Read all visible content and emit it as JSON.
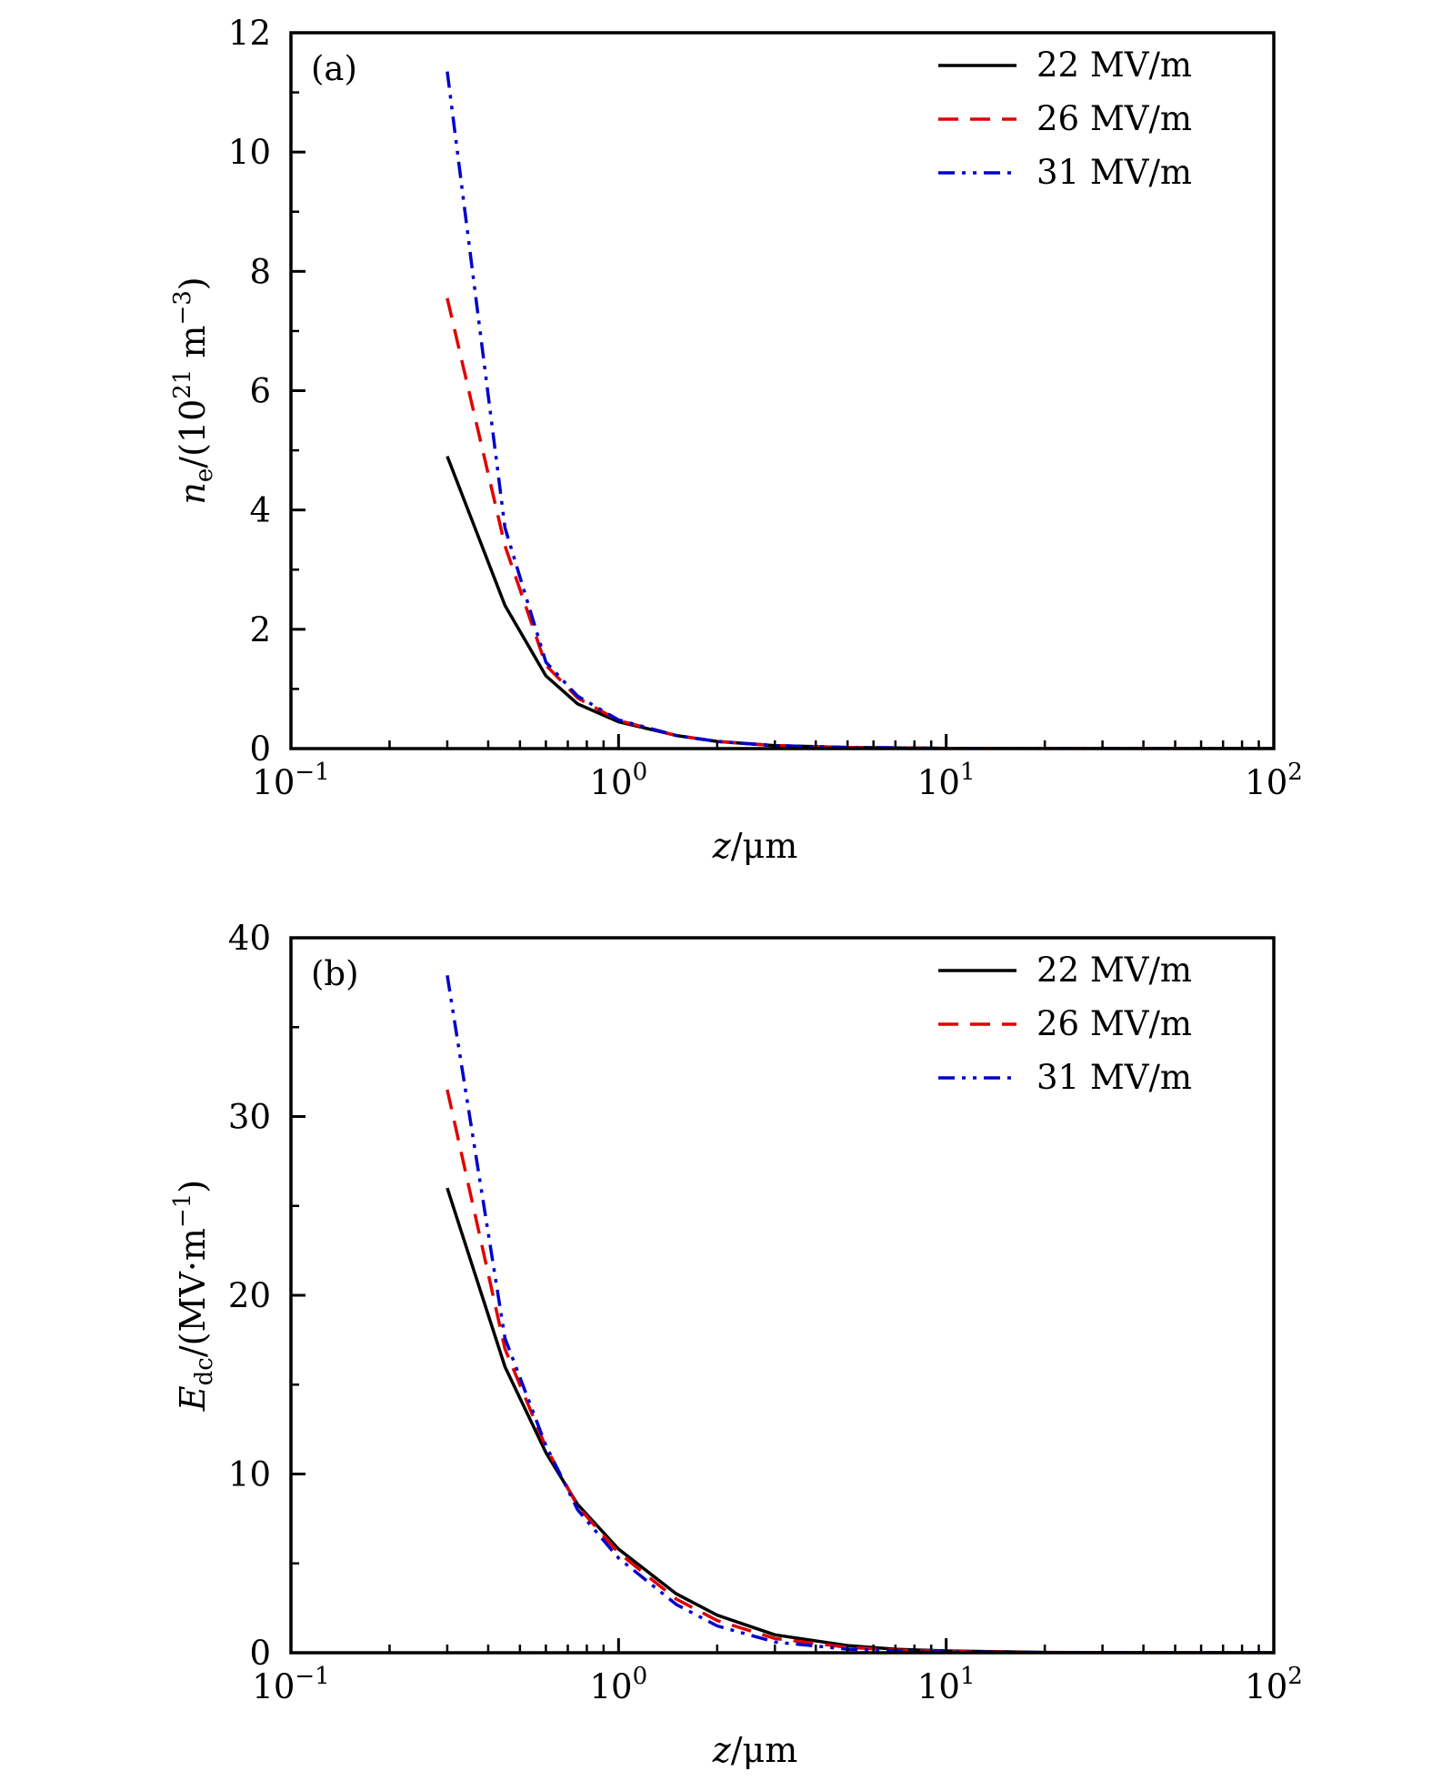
{
  "chart_data": [
    {
      "type": "line",
      "panel_label": "(a)",
      "title": "",
      "xlabel": {
        "italic": "z",
        "rest": "/μm"
      },
      "ylabel": {
        "italic": "n",
        "sub": "e",
        "prefix_rest": "/(10",
        "sup": "21",
        "mid": " m",
        "sup2": "−3",
        "end": ")"
      },
      "xscale": "log",
      "xlim": [
        0.1,
        100
      ],
      "ylim": [
        0,
        12
      ],
      "xticks": [
        {
          "value": 0.1,
          "base": "10",
          "exp": "−1"
        },
        {
          "value": 1,
          "base": "10",
          "exp": "0"
        },
        {
          "value": 10,
          "base": "10",
          "exp": "1"
        },
        {
          "value": 100,
          "base": "10",
          "exp": "2"
        }
      ],
      "yticks": [
        0,
        2,
        4,
        6,
        8,
        10,
        12
      ],
      "legend_position": "top-right",
      "grid": false,
      "x": [
        0.3,
        0.45,
        0.6,
        0.75,
        1.0,
        1.5,
        2.0,
        3.0,
        5.0,
        10,
        20,
        50,
        100
      ],
      "series": [
        {
          "name": "22 MV/m",
          "color": "#000000",
          "style": "solid",
          "values": [
            4.9,
            2.4,
            1.22,
            0.75,
            0.45,
            0.22,
            0.12,
            0.05,
            0.02,
            0.005,
            0.0,
            0.0,
            0.0
          ]
        },
        {
          "name": "26 MV/m",
          "color": "#e00000",
          "style": "dashed",
          "values": [
            7.55,
            3.4,
            1.4,
            0.85,
            0.47,
            0.22,
            0.12,
            0.05,
            0.02,
            0.005,
            0.0,
            0.0,
            0.0
          ]
        },
        {
          "name": "31 MV/m",
          "color": "#0000cc",
          "style": "dash-dot-dot",
          "values": [
            11.35,
            3.7,
            1.45,
            0.88,
            0.48,
            0.22,
            0.12,
            0.05,
            0.02,
            0.005,
            0.0,
            0.0,
            0.0
          ]
        }
      ]
    },
    {
      "type": "line",
      "panel_label": "(b)",
      "title": "",
      "xlabel": {
        "italic": "z",
        "rest": "/μm"
      },
      "ylabel": {
        "italic": "E",
        "sub": "dc",
        "prefix_rest": "/(MV·m",
        "sup": "−1",
        "end": ")"
      },
      "xscale": "log",
      "xlim": [
        0.1,
        100
      ],
      "ylim": [
        0,
        40
      ],
      "xticks": [
        {
          "value": 0.1,
          "base": "10",
          "exp": "−1"
        },
        {
          "value": 1,
          "base": "10",
          "exp": "0"
        },
        {
          "value": 10,
          "base": "10",
          "exp": "1"
        },
        {
          "value": 100,
          "base": "10",
          "exp": "2"
        }
      ],
      "yticks": [
        0,
        10,
        20,
        30,
        40
      ],
      "legend_position": "top-right",
      "grid": false,
      "x": [
        0.3,
        0.45,
        0.6,
        0.75,
        1.0,
        1.5,
        2.0,
        3.0,
        5.0,
        7.0,
        10,
        20,
        50,
        100
      ],
      "series": [
        {
          "name": "22 MV/m",
          "color": "#000000",
          "style": "solid",
          "values": [
            26.0,
            16.0,
            11.2,
            8.3,
            5.8,
            3.3,
            2.1,
            1.0,
            0.4,
            0.2,
            0.1,
            0.02,
            0.0,
            0.0
          ]
        },
        {
          "name": "26 MV/m",
          "color": "#e00000",
          "style": "dashed",
          "values": [
            31.5,
            17.0,
            11.5,
            8.2,
            5.6,
            3.0,
            1.8,
            0.8,
            0.3,
            0.15,
            0.07,
            0.01,
            0.0,
            0.0
          ]
        },
        {
          "name": "31 MV/m",
          "color": "#0000cc",
          "style": "dash-dot-dot",
          "values": [
            37.9,
            17.6,
            11.6,
            8.0,
            5.3,
            2.7,
            1.5,
            0.6,
            0.2,
            0.1,
            0.05,
            0.01,
            0.0,
            0.0
          ]
        }
      ]
    }
  ]
}
